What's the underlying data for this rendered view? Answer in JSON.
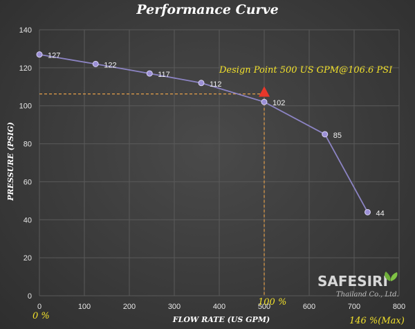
{
  "colors": {
    "line": "#8c84c4",
    "marker": "#9b8fd6",
    "guide": "#e6a04a",
    "design_marker": "#e8372a",
    "annotation": "#f2e12b",
    "grid": "#5a5a5a",
    "leaf": "#6fae3a"
  },
  "chart_data": {
    "type": "line",
    "title": "Performance Curve",
    "xlabel": "FLOW RATE (US GPM)",
    "ylabel": "PRESSURE (PSIG)",
    "xlim": [
      0,
      800
    ],
    "ylim": [
      0,
      140
    ],
    "x_ticks": [
      0,
      100,
      200,
      300,
      400,
      500,
      600,
      700,
      800
    ],
    "y_ticks": [
      0,
      20,
      40,
      60,
      80,
      100,
      120,
      140
    ],
    "grid": true,
    "series": [
      {
        "x": [
          0,
          125,
          245,
          360,
          500,
          635,
          730
        ],
        "y": [
          127,
          122,
          117,
          112,
          102,
          85,
          44
        ],
        "labels": [
          "127",
          "122",
          "117",
          "112",
          "102",
          "85",
          "44"
        ]
      }
    ],
    "design_point": {
      "x": 500,
      "y": 106.6,
      "label": "Design Point 500 US GPM@106.6 PSI"
    },
    "annotations": {
      "zero_percent": "0 %",
      "hundred_percent": "100 %",
      "max_percent": "146 %(Max)"
    }
  },
  "brand": {
    "name": "SAFESIRI",
    "sub": "Thailand Co., Ltd.",
    "icon": "leaf-icon"
  }
}
